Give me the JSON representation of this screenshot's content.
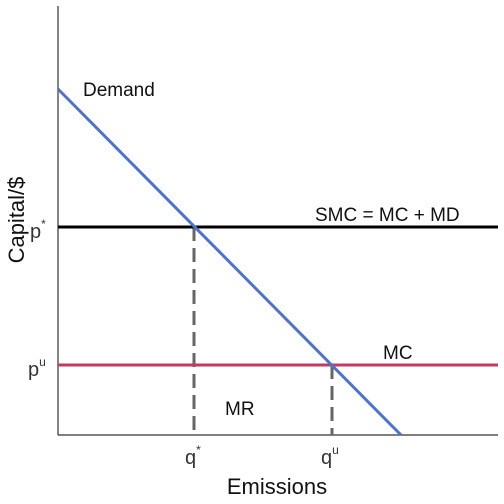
{
  "diagram": {
    "x_axis_title": "Emissions",
    "y_axis_title": "Capital/$",
    "x_ticks": [
      {
        "base": "q",
        "sup": "*"
      },
      {
        "base": "q",
        "sup": "u"
      }
    ],
    "y_ticks": [
      {
        "base": "p",
        "sup": "*"
      },
      {
        "base": "p",
        "sup": "u"
      }
    ],
    "curves": {
      "demand": {
        "label": "Demand",
        "color": "#4f74c6"
      },
      "smc": {
        "label": "SMC = MC + MD",
        "color": "#000000"
      },
      "mc": {
        "label": "MC",
        "color": "#c4395f"
      }
    },
    "region_labels": {
      "mr": "MR"
    },
    "guide_color": "#666666",
    "axis_color": "#333333"
  }
}
